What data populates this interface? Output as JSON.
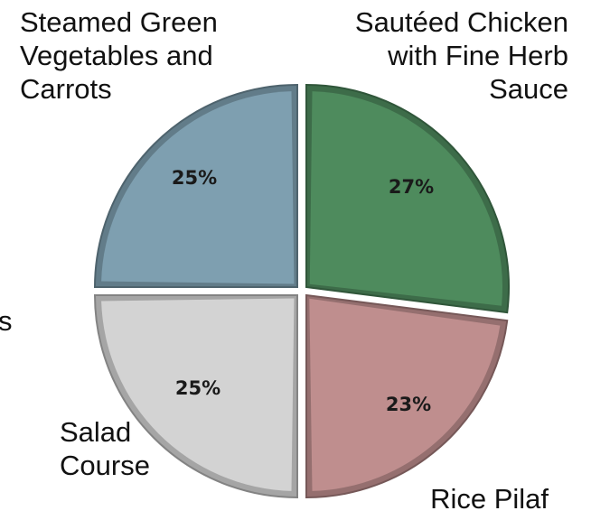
{
  "chart_data": {
    "type": "pie",
    "slices": [
      {
        "label": [
          "Sautéed Chicken",
          "with Fine Herb",
          "Sauce"
        ],
        "value": 27,
        "value_label": "27%",
        "color": "#4e8b5d"
      },
      {
        "label": [
          "Rice Pilaf"
        ],
        "value": 23,
        "value_label": "23%",
        "color": "#bf8e8e"
      },
      {
        "label": [
          "Salad",
          "Course"
        ],
        "value": 25,
        "value_label": "25%",
        "color": "#d3d3d3"
      },
      {
        "label": [
          "Steamed Green",
          "Vegetables and",
          "Carrots"
        ],
        "value": 25,
        "value_label": "25%",
        "color": "#7e9fb0"
      }
    ],
    "clipped_label_fragment": "s"
  }
}
